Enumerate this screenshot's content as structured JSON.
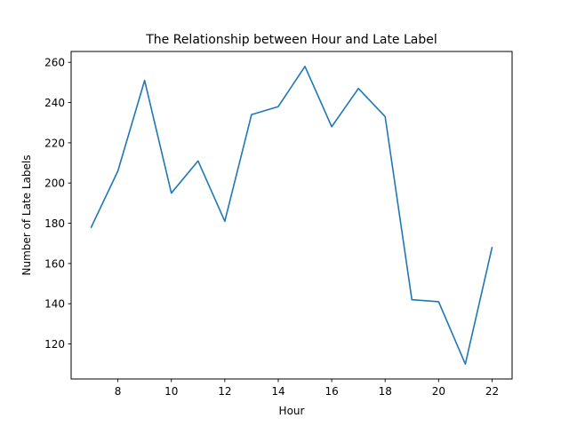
{
  "chart_data": {
    "type": "line",
    "title": "The Relationship between Hour and Late Label",
    "xlabel": "Hour",
    "ylabel": "Number of Late Labels",
    "x": [
      7,
      8,
      9,
      10,
      11,
      12,
      13,
      14,
      15,
      16,
      17,
      18,
      19,
      20,
      21,
      22
    ],
    "series": [
      {
        "values": [
          178,
          206,
          251,
          195,
          211,
          181,
          234,
          238,
          258,
          228,
          247,
          233,
          142,
          141,
          110,
          168
        ],
        "color": "#1f77b4"
      }
    ],
    "xlim": [
      6.25,
      22.75
    ],
    "ylim": [
      102.6,
      265.4
    ],
    "xticks": [
      8,
      10,
      12,
      14,
      16,
      18,
      20,
      22
    ],
    "xtick_labels": [
      "8",
      "10",
      "12",
      "14",
      "16",
      "18",
      "20",
      "22"
    ],
    "yticks": [
      120,
      140,
      160,
      180,
      200,
      220,
      240,
      260
    ],
    "ytick_labels": [
      "120",
      "140",
      "160",
      "180",
      "200",
      "220",
      "240",
      "260"
    ],
    "grid": false,
    "legend": "none"
  }
}
